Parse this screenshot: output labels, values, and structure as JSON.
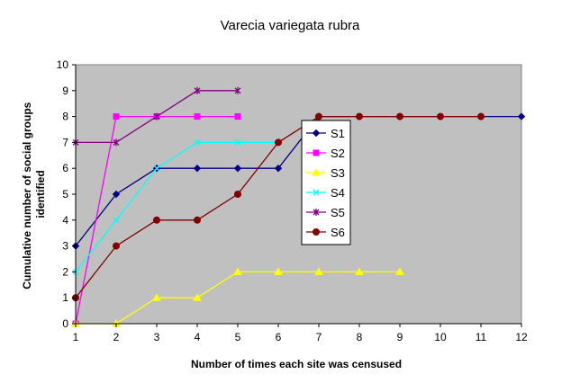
{
  "chart_data": {
    "type": "line",
    "title": "Varecia variegata rubra",
    "xlabel": "Number of times each site was censused",
    "ylabel_lines": [
      "Cumulative number of social groups",
      "identified"
    ],
    "xlim": [
      1,
      12
    ],
    "ylim": [
      0,
      10
    ],
    "x_ticks": [
      1,
      2,
      3,
      4,
      5,
      6,
      7,
      8,
      9,
      10,
      11,
      12
    ],
    "y_ticks": [
      0,
      1,
      2,
      3,
      4,
      5,
      6,
      7,
      8,
      9,
      10
    ],
    "plot_background": "#c0c0c0",
    "legend_position": "right-center",
    "grid": false,
    "series": [
      {
        "name": "S1",
        "color": "#000080",
        "marker": "diamond",
        "x": [
          1,
          2,
          3,
          4,
          5,
          6,
          7,
          8,
          9,
          10,
          11,
          12
        ],
        "y": [
          3,
          5,
          6,
          6,
          6,
          6,
          8,
          8,
          8,
          8,
          8,
          8
        ]
      },
      {
        "name": "S2",
        "color": "#ff00ff",
        "marker": "square",
        "x": [
          1,
          2,
          3,
          4,
          5
        ],
        "y": [
          0,
          8,
          8,
          8,
          8
        ]
      },
      {
        "name": "S3",
        "color": "#ffff00",
        "marker": "triangle",
        "x": [
          1,
          2,
          3,
          4,
          5,
          6,
          7,
          8,
          9
        ],
        "y": [
          0,
          0,
          1,
          1,
          2,
          2,
          2,
          2,
          2
        ]
      },
      {
        "name": "S4",
        "color": "#00ffff",
        "marker": "x",
        "x": [
          1,
          2,
          3,
          4,
          5,
          6
        ],
        "y": [
          2,
          4,
          6,
          7,
          7,
          7
        ]
      },
      {
        "name": "S5",
        "color": "#800080",
        "marker": "star",
        "x": [
          1,
          2,
          3,
          4,
          5
        ],
        "y": [
          7,
          7,
          8,
          9,
          9
        ]
      },
      {
        "name": "S6",
        "color": "#800000",
        "marker": "circle",
        "x": [
          1,
          2,
          3,
          4,
          5,
          6,
          7,
          8,
          9,
          10,
          11
        ],
        "y": [
          1,
          3,
          4,
          4,
          5,
          7,
          8,
          8,
          8,
          8,
          8
        ]
      }
    ]
  }
}
